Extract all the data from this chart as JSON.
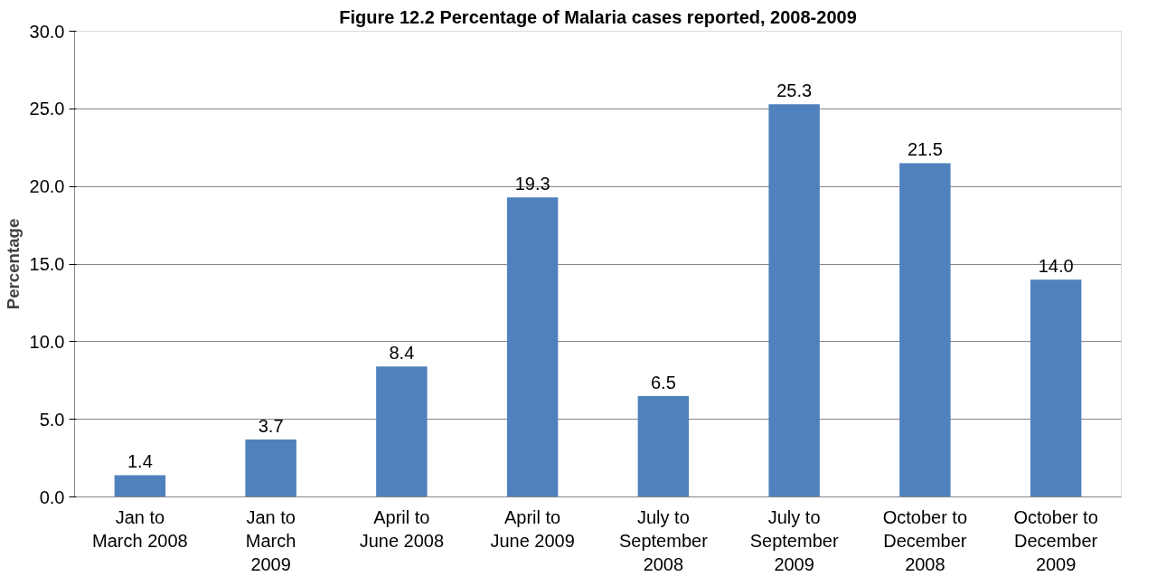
{
  "chart_data": {
    "type": "bar",
    "title": "Figure 12.2 Percentage of Malaria cases reported, 2008-2009",
    "ylabel": "Percentage",
    "categories": [
      "Jan to\nMarch 2008",
      "Jan to\nMarch\n2009",
      "April to\nJune 2008",
      "April to\nJune 2009",
      "July to\nSeptember\n2008",
      "July to\nSeptember\n2009",
      "October to\nDecember\n2008",
      "October to\nDecember\n2009"
    ],
    "values": [
      1.4,
      3.7,
      8.4,
      19.3,
      6.5,
      25.3,
      21.5,
      14.0
    ],
    "color": "#4f81bd",
    "ylim": [
      0,
      30
    ],
    "yticks": [
      {
        "value": 0,
        "label": "0.0"
      },
      {
        "value": 5,
        "label": "5.0"
      },
      {
        "value": 10,
        "label": "10.0"
      },
      {
        "value": 15,
        "label": "15.0"
      },
      {
        "value": 20,
        "label": "20.0"
      },
      {
        "value": 25,
        "label": "25.0"
      },
      {
        "value": 30,
        "label": "30.0"
      }
    ],
    "value_labels": [
      "1.4",
      "3.7",
      "8.4",
      "19.3",
      "6.5",
      "25.3",
      "21.5",
      "14.0"
    ],
    "grid": "y"
  }
}
